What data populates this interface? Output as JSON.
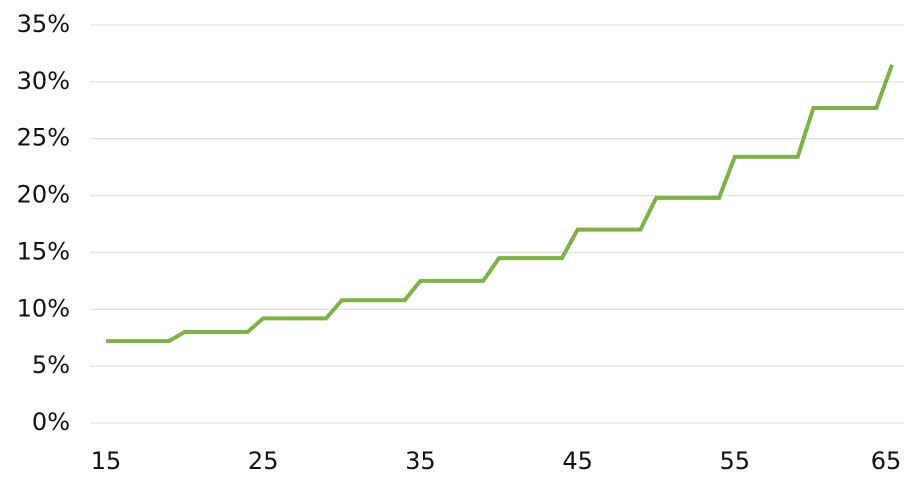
{
  "chart_data": {
    "type": "line",
    "x": [
      15,
      19,
      20,
      24,
      25,
      29,
      30,
      34,
      35,
      39,
      40,
      44,
      45,
      49,
      50,
      54,
      55,
      59,
      60,
      64,
      65
    ],
    "series": [
      {
        "color": "#7cb342",
        "values": [
          7.2,
          7.2,
          8.0,
          8.0,
          9.2,
          9.2,
          10.8,
          10.8,
          12.5,
          12.5,
          14.5,
          14.5,
          17.0,
          17.0,
          19.8,
          19.8,
          23.4,
          23.4,
          27.7,
          27.7,
          31.5
        ]
      }
    ],
    "xlim": [
      15,
      65
    ],
    "xticks": [
      15,
      25,
      35,
      45,
      55,
      65
    ],
    "ylim": [
      0,
      35
    ],
    "yticks": [
      {
        "value": 0,
        "label": "0%"
      },
      {
        "value": 5,
        "label": "5%"
      },
      {
        "value": 10,
        "label": "10%"
      },
      {
        "value": 15,
        "label": "15%"
      },
      {
        "value": 20,
        "label": "20%"
      },
      {
        "value": 25,
        "label": "25%"
      },
      {
        "value": 30,
        "label": "30%"
      },
      {
        "value": 35,
        "label": "35%"
      }
    ],
    "grid": true
  }
}
